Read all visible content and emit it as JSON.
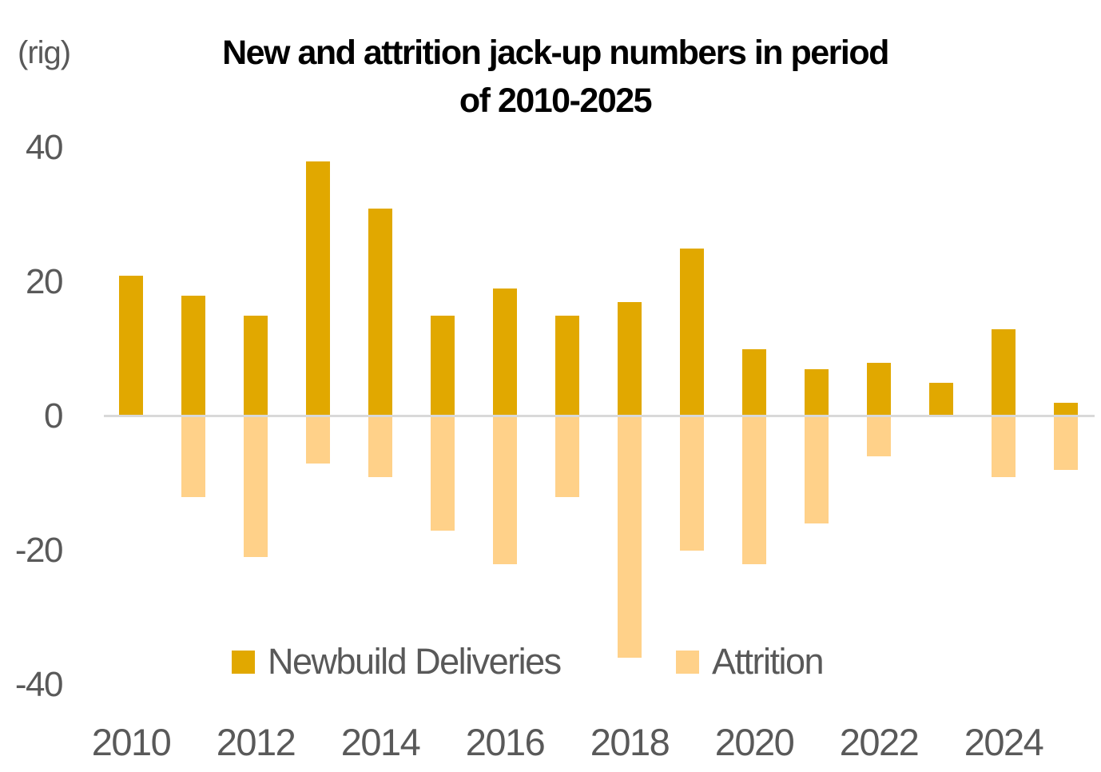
{
  "unit_label": "(rig)",
  "header": {
    "title_line1": "New and attrition jack-up numbers in period",
    "title_line2": "of 2010-2025"
  },
  "legend": [
    {
      "label": "Newbuild Deliveries",
      "color": "#e1a800"
    },
    {
      "label": "Attrition",
      "color": "#ffd189"
    }
  ],
  "colors": {
    "newbuild": "#e1a800",
    "attrition": "#ffd189",
    "axis_text": "#595959",
    "title_text": "#000000",
    "zero_line": "#d9d9d9"
  },
  "chart_data": {
    "type": "bar",
    "title": "New and attrition jack-up numbers in period of 2010-2025",
    "unit": "(rig)",
    "categories": [
      2010,
      2011,
      2012,
      2013,
      2014,
      2015,
      2016,
      2017,
      2018,
      2019,
      2020,
      2021,
      2022,
      2023,
      2024,
      2025
    ],
    "series": [
      {
        "name": "Newbuild Deliveries",
        "color": "#e1a800",
        "values": [
          21,
          18,
          15,
          38,
          31,
          15,
          19,
          15,
          17,
          25,
          10,
          7,
          8,
          5,
          13,
          2
        ]
      },
      {
        "name": "Attrition",
        "color": "#ffd189",
        "values": [
          0,
          -12,
          -21,
          -7,
          -9,
          -17,
          -22,
          -12,
          -36,
          -20,
          -22,
          -16,
          -6,
          0,
          -9,
          -8
        ]
      }
    ],
    "y_axis": {
      "ticks": [
        40,
        20,
        0,
        -20,
        -40
      ],
      "range": [
        -45,
        45
      ],
      "label": "(rig)"
    },
    "x_axis": {
      "tick_labels": [
        "2010",
        "2012",
        "2014",
        "2016",
        "2018",
        "2020",
        "2022",
        "2024"
      ],
      "tick_every": 2
    },
    "grid": "zero-line-only",
    "legend_position": "bottom-inside"
  }
}
